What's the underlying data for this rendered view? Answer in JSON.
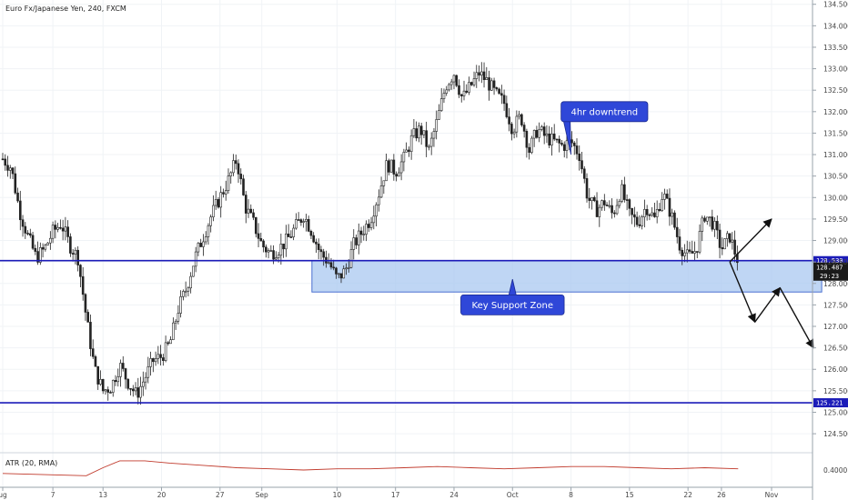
{
  "chart_data": {
    "type": "candlestick",
    "title": "Euro Fx/Japanese Yen, 240, FXCM",
    "y_axis": {
      "ylim": [
        124.1,
        134.6
      ],
      "ticks": [
        "124.500",
        "125.000",
        "125.500",
        "126.000",
        "126.500",
        "127.000",
        "127.500",
        "128.000",
        "128.500",
        "129.000",
        "129.500",
        "130.000",
        "130.500",
        "131.000",
        "131.500",
        "132.000",
        "132.500",
        "133.000",
        "133.500",
        "134.000",
        "134.500"
      ]
    },
    "x_axis": {
      "ticks": [
        {
          "label": "ug",
          "day": 1
        },
        {
          "label": "7",
          "day": 7
        },
        {
          "label": "13",
          "day": 13
        },
        {
          "label": "20",
          "day": 20
        },
        {
          "label": "27",
          "day": 27
        },
        {
          "label": "Sep",
          "day": 32
        },
        {
          "label": "10",
          "day": 41
        },
        {
          "label": "17",
          "day": 48
        },
        {
          "label": "24",
          "day": 55
        },
        {
          "label": "Oct",
          "day": 62
        },
        {
          "label": "8",
          "day": 69
        },
        {
          "label": "15",
          "day": 76
        },
        {
          "label": "22",
          "day": 83
        },
        {
          "label": "26",
          "day": 87
        },
        {
          "label": "Nov",
          "day": 93
        }
      ]
    },
    "price_path": [
      [
        0,
        130.9
      ],
      [
        1,
        130.7
      ],
      [
        2,
        129.7
      ],
      [
        3,
        129.1
      ],
      [
        4,
        128.6
      ],
      [
        5,
        128.8
      ],
      [
        6,
        129.2
      ],
      [
        7,
        129.4
      ],
      [
        8,
        128.9
      ],
      [
        9,
        128.6
      ],
      [
        10,
        127.2
      ],
      [
        11,
        126.0
      ],
      [
        12,
        125.5
      ],
      [
        13,
        125.6
      ],
      [
        14,
        126.1
      ],
      [
        15,
        125.7
      ],
      [
        16,
        125.4
      ],
      [
        17,
        125.8
      ],
      [
        18,
        126.2
      ],
      [
        19,
        126.3
      ],
      [
        20,
        126.6
      ],
      [
        21,
        127.4
      ],
      [
        22,
        127.9
      ],
      [
        23,
        128.6
      ],
      [
        24,
        129.1
      ],
      [
        25,
        129.6
      ],
      [
        26,
        130.0
      ],
      [
        27,
        130.4
      ],
      [
        28,
        130.9
      ],
      [
        29,
        129.8
      ],
      [
        30,
        129.4
      ],
      [
        31,
        128.9
      ],
      [
        32,
        128.7
      ],
      [
        33,
        128.8
      ],
      [
        34,
        129.0
      ],
      [
        35,
        129.3
      ],
      [
        36,
        129.6
      ],
      [
        37,
        129.2
      ],
      [
        38,
        128.7
      ],
      [
        39,
        128.5
      ],
      [
        40,
        128.1
      ],
      [
        41,
        128.3
      ],
      [
        42,
        128.9
      ],
      [
        43,
        129.2
      ],
      [
        44,
        129.5
      ],
      [
        45,
        130.1
      ],
      [
        46,
        130.8
      ],
      [
        47,
        130.6
      ],
      [
        48,
        130.9
      ],
      [
        49,
        131.4
      ],
      [
        50,
        131.6
      ],
      [
        51,
        131.1
      ],
      [
        52,
        131.8
      ],
      [
        53,
        132.6
      ],
      [
        54,
        132.9
      ],
      [
        55,
        132.3
      ],
      [
        56,
        132.6
      ],
      [
        57,
        132.9
      ],
      [
        58,
        132.7
      ],
      [
        59,
        132.4
      ],
      [
        60,
        132.2
      ],
      [
        61,
        131.6
      ],
      [
        62,
        131.9
      ],
      [
        63,
        131.1
      ],
      [
        64,
        131.6
      ],
      [
        65,
        131.4
      ],
      [
        66,
        131.3
      ],
      [
        67,
        131.2
      ],
      [
        68,
        131.3
      ],
      [
        69,
        131.0
      ],
      [
        70,
        130.0
      ],
      [
        71,
        129.7
      ],
      [
        72,
        129.9
      ],
      [
        73,
        129.6
      ],
      [
        74,
        130.2
      ],
      [
        75,
        129.6
      ],
      [
        76,
        129.4
      ],
      [
        77,
        129.8
      ],
      [
        78,
        129.5
      ],
      [
        79,
        130.1
      ],
      [
        80,
        129.6
      ],
      [
        81,
        128.9
      ],
      [
        82,
        128.6
      ],
      [
        83,
        128.8
      ],
      [
        84,
        129.6
      ],
      [
        85,
        129.4
      ],
      [
        86,
        128.8
      ],
      [
        87,
        129.1
      ],
      [
        88,
        128.487
      ]
    ],
    "horizontal_lines": [
      {
        "value": 128.53,
        "label": "128.530",
        "color": "#1c1cb8"
      },
      {
        "value": 125.221,
        "label": "125.221",
        "color": "#1c1cb8"
      }
    ],
    "current_price": {
      "value": 128.487,
      "label": "128.487",
      "countdown": "29:23"
    },
    "support_zone": {
      "top": 128.53,
      "bottom": 127.8,
      "x_start": 38,
      "x_end": 99,
      "color": "#aac8f0"
    },
    "annotations": [
      {
        "text": "4hr downtrend",
        "day": 73,
        "price": 132.0,
        "pointer_day": 69,
        "pointer_price": 131.0
      },
      {
        "text": "Key Support Zone",
        "day": 62,
        "price": 127.5,
        "pointer_day": 62,
        "pointer_price": 128.1
      }
    ],
    "projection_arrows": [
      {
        "from": [
          88,
          128.5
        ],
        "to": [
          93,
          129.5
        ]
      },
      {
        "from": [
          88,
          128.5
        ],
        "to": [
          91,
          127.1
        ]
      },
      {
        "from": [
          91,
          127.1
        ],
        "to": [
          94,
          127.9
        ]
      },
      {
        "from": [
          94,
          127.9
        ],
        "to": [
          98,
          126.5
        ]
      }
    ],
    "indicator": {
      "label": "ATR (20, RMA)",
      "tick": "0.4000",
      "color": "#c0392b",
      "ylim": [
        0.25,
        0.55
      ],
      "values": [
        [
          0,
          0.37
        ],
        [
          5,
          0.36
        ],
        [
          10,
          0.35
        ],
        [
          12,
          0.42
        ],
        [
          14,
          0.48
        ],
        [
          17,
          0.48
        ],
        [
          20,
          0.46
        ],
        [
          24,
          0.44
        ],
        [
          28,
          0.42
        ],
        [
          32,
          0.41
        ],
        [
          36,
          0.4
        ],
        [
          40,
          0.41
        ],
        [
          44,
          0.41
        ],
        [
          48,
          0.42
        ],
        [
          52,
          0.43
        ],
        [
          56,
          0.42
        ],
        [
          60,
          0.41
        ],
        [
          64,
          0.42
        ],
        [
          68,
          0.43
        ],
        [
          72,
          0.43
        ],
        [
          76,
          0.42
        ],
        [
          80,
          0.41
        ],
        [
          84,
          0.42
        ],
        [
          88,
          0.41
        ]
      ]
    }
  }
}
